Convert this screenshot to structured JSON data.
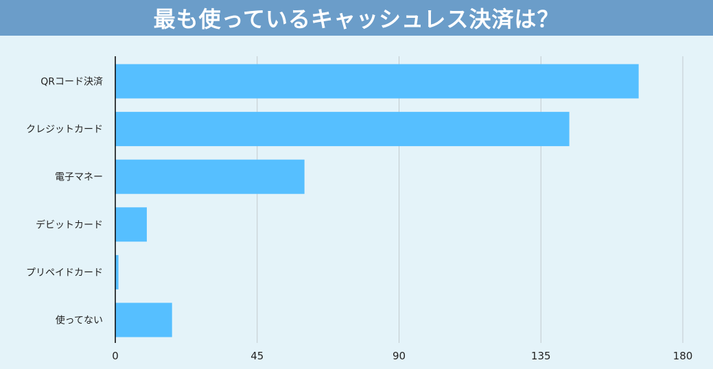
{
  "header": {
    "title": "最も使っているキャッシュレス決済は？"
  },
  "colors": {
    "header_bg": "#6b9dc9",
    "background": "#e4f3f9",
    "bar": "#56bfff",
    "grid": "#c2cace",
    "axis": "#000000"
  },
  "chart_data": {
    "type": "bar",
    "orientation": "horizontal",
    "title": "最も使っているキャッシュレス決済は？",
    "categories": [
      "QRコード決済",
      "クレジットカード",
      "電子マネー",
      "デビットカード",
      "プリペイドカード",
      "使ってない"
    ],
    "values": [
      166,
      144,
      60,
      10,
      1,
      18
    ],
    "xlim": [
      0,
      180
    ],
    "xticks": [
      "0",
      "45",
      "90",
      "135",
      "180"
    ],
    "xtick_values": [
      0,
      45,
      90,
      135,
      180
    ],
    "grid": true,
    "legend": "none"
  }
}
